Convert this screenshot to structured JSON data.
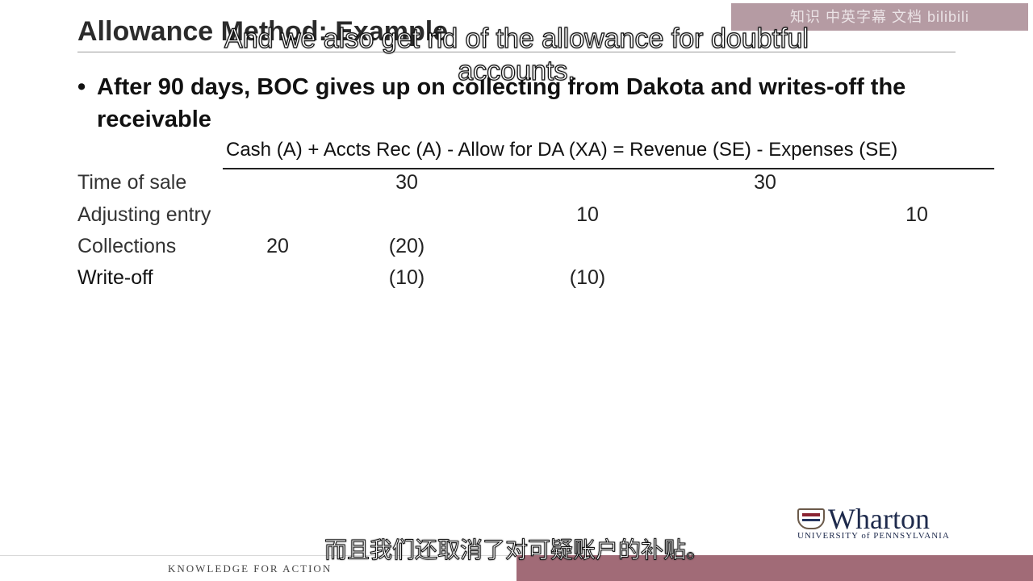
{
  "watermark": "知识 中英字幕 文档 bilibili",
  "slide": {
    "title": "Allowance Method: Example",
    "bullet": "After 90 days, BOC gives up on collecting from Dakota and writes-off the receivable",
    "equation_header": "Cash (A) + Accts Rec (A) - Allow for DA (XA) =   Revenue (SE) - Expenses (SE)",
    "rows": [
      {
        "label": "Time of sale",
        "cash": "",
        "ar": "30",
        "allow": "",
        "revenue": "30",
        "expenses": ""
      },
      {
        "label": "Adjusting entry",
        "cash": "",
        "ar": "",
        "allow": "10",
        "revenue": "",
        "expenses": "10"
      },
      {
        "label": "Collections",
        "cash": "20",
        "ar": "(20)",
        "allow": "",
        "revenue": "",
        "expenses": ""
      },
      {
        "label": "Write-off",
        "cash": "",
        "ar": "(10)",
        "allow": "(10)",
        "revenue": "",
        "expenses": ""
      }
    ]
  },
  "logo": {
    "wordmark": "Wharton",
    "university": "UNIVERSITY of PENNSYLVANIA"
  },
  "footer": {
    "tagline": "KNOWLEDGE FOR ACTION"
  },
  "subtitles": {
    "english": "And we also get rid of the allowance for doubtful accounts.",
    "chinese": "而且我们还取消了对可疑账户的补贴。"
  }
}
